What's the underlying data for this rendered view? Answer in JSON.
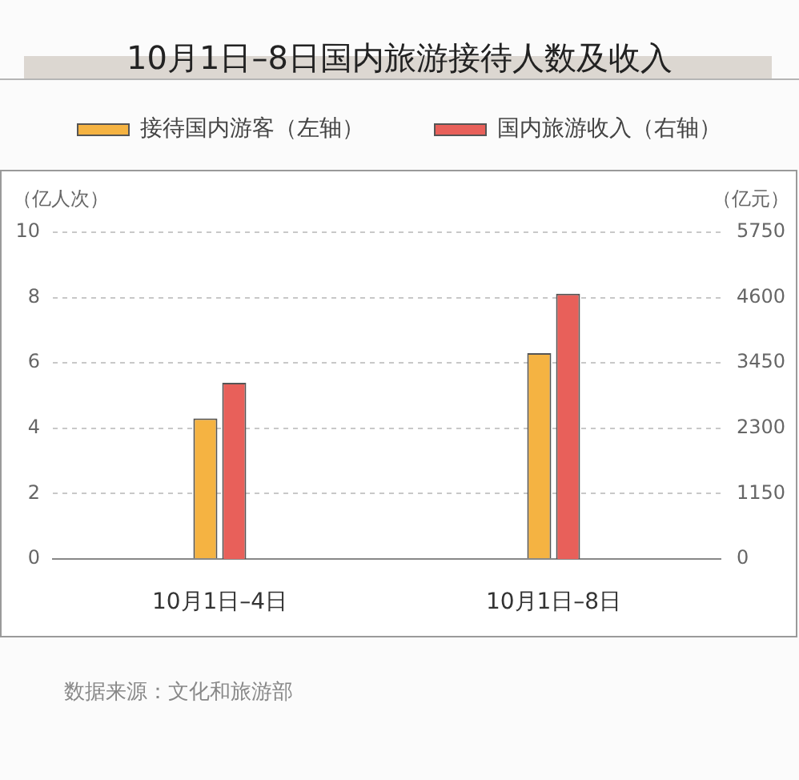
{
  "chart_data": {
    "type": "bar",
    "title": "10月1日–8日国内旅游接待人数及收入",
    "categories": [
      "10月1日–4日",
      "10月1日–8日"
    ],
    "series": [
      {
        "name": "接待国内游客（左轴）",
        "color": "#f5b342",
        "values": [
          4.3,
          6.3
        ]
      },
      {
        "name": "国内旅游收入（右轴）",
        "color": "#e8605a",
        "values": [
          3100,
          4670
        ],
        "axis": "y2"
      }
    ],
    "ylabel": "（亿人次）",
    "y2label": "（亿元）",
    "ylim": [
      0,
      10
    ],
    "yticks": [
      0,
      2,
      4,
      6,
      8,
      10
    ],
    "y2lim": [
      0,
      5750
    ],
    "y2ticks": [
      0,
      1150,
      2300,
      3450,
      4600,
      5750
    ],
    "grid": "y",
    "legend": "top",
    "annotations": [
      "数据来源：文化和旅游部"
    ]
  }
}
